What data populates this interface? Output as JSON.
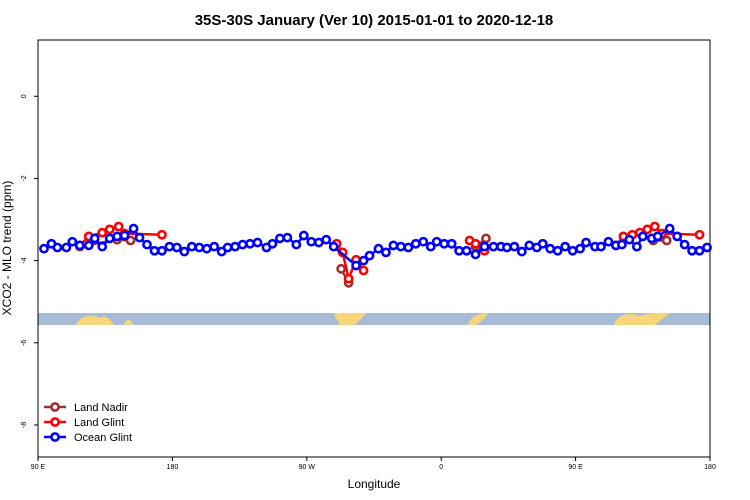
{
  "chart_data": {
    "type": "line",
    "title": "35S-30S January (Ver 10)   2015-01-01 to 2020-12-18",
    "x_label": "Longitude",
    "y_label": "XCO2 - MLO trend (ppm)",
    "xlim": [
      90,
      540
    ],
    "ylim": [
      -8.78,
      1.37
    ],
    "xticks": [
      {
        "value": 90,
        "label": "90 E"
      },
      180,
      {
        "value": 270,
        "label": "90 W"
      },
      {
        "value": 360,
        "label": "0"
      },
      {
        "value": 450,
        "label": "90 E"
      },
      {
        "value": 540,
        "label": "180"
      }
    ],
    "yticks": [
      0,
      -2,
      -4,
      -6,
      -8
    ],
    "legend": "bottom-left",
    "series": [
      {
        "name": "Land Nadir",
        "color": "#a0302e",
        "x": [
          118,
          143,
          152,
          null,
          293,
          298,
          null,
          383,
          390,
          null,
          502,
          511
        ],
        "values": [
          -3.66,
          -3.49,
          -3.51,
          null,
          -4.2,
          -4.54,
          null,
          -3.66,
          -3.46,
          null,
          -3.51,
          -3.51
        ]
      },
      {
        "name": "Land Glint",
        "color": "#ff0000",
        "x": [
          118,
          124,
          133,
          138,
          144,
          148,
          173,
          null,
          290,
          294,
          298,
          303,
          308,
          null,
          379,
          383,
          389,
          null,
          477,
          482,
          488,
          493,
          498,
          503,
          508,
          533
        ],
        "values": [
          -3.63,
          -3.41,
          -3.32,
          -3.24,
          -3.17,
          -3.34,
          -3.37,
          null,
          -3.59,
          -3.8,
          -4.44,
          -3.98,
          -4.24,
          null,
          -3.51,
          -3.59,
          -3.76,
          null,
          -3.63,
          -3.41,
          -3.37,
          -3.32,
          -3.24,
          -3.17,
          -3.34,
          -3.37
        ]
      },
      {
        "name": "Ocean Glint",
        "color": "#0000ff",
        "x": [
          94,
          99,
          103,
          109,
          113,
          118,
          124,
          128,
          133,
          138,
          143,
          148,
          154,
          158,
          163,
          168,
          173,
          178,
          183,
          188,
          193,
          198,
          203,
          208,
          213,
          217,
          222,
          227,
          232,
          237,
          243,
          247,
          252,
          257,
          263,
          268,
          273,
          278,
          283,
          288,
          303,
          308,
          312,
          318,
          323,
          328,
          333,
          338,
          343,
          348,
          353,
          357,
          362,
          367,
          372,
          377,
          383,
          389,
          395,
          400,
          404,
          409,
          414,
          419,
          424,
          428,
          433,
          438,
          443,
          448,
          453,
          457,
          463,
          467,
          472,
          477,
          481,
          486,
          491,
          495,
          501,
          505,
          513,
          518,
          523,
          528,
          533,
          538
        ],
        "values": [
          -3.71,
          -3.59,
          -3.68,
          -3.68,
          -3.54,
          -3.63,
          -3.63,
          -3.46,
          -3.66,
          -3.46,
          -3.41,
          -3.39,
          -3.22,
          -3.44,
          -3.61,
          -3.76,
          -3.76,
          -3.66,
          -3.68,
          -3.78,
          -3.66,
          -3.68,
          -3.71,
          -3.66,
          -3.78,
          -3.68,
          -3.66,
          -3.61,
          -3.59,
          -3.56,
          -3.68,
          -3.59,
          -3.46,
          -3.44,
          -3.61,
          -3.39,
          -3.54,
          -3.56,
          -3.49,
          -3.66,
          -4.12,
          -4.0,
          -3.88,
          -3.71,
          -3.8,
          -3.63,
          -3.66,
          -3.68,
          -3.59,
          -3.54,
          -3.66,
          -3.54,
          -3.59,
          -3.59,
          -3.76,
          -3.76,
          -3.85,
          -3.66,
          -3.66,
          -3.66,
          -3.68,
          -3.66,
          -3.78,
          -3.63,
          -3.68,
          -3.59,
          -3.71,
          -3.76,
          -3.66,
          -3.76,
          -3.71,
          -3.56,
          -3.66,
          -3.66,
          -3.54,
          -3.63,
          -3.61,
          -3.49,
          -3.66,
          -3.41,
          -3.46,
          -3.41,
          -3.22,
          -3.41,
          -3.61,
          -3.76,
          -3.76,
          -3.68
        ]
      }
    ]
  }
}
